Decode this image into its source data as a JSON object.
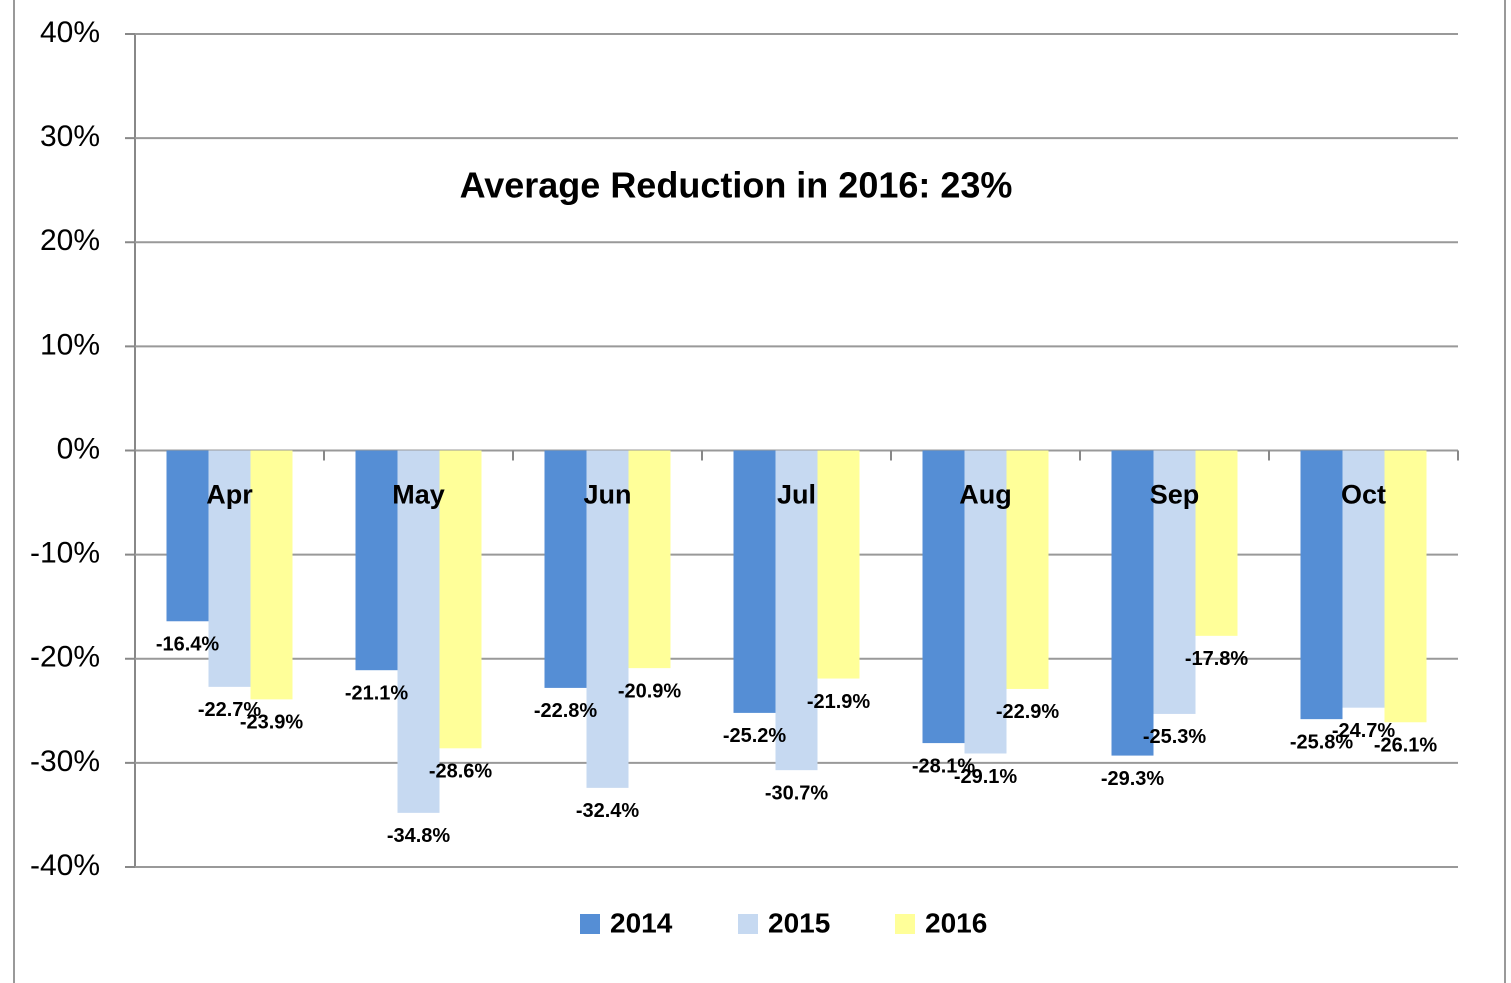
{
  "chart_data": {
    "type": "bar",
    "annotation": "Average Reduction in 2016: 23%",
    "categories": [
      "Apr",
      "May",
      "Jun",
      "Jul",
      "Aug",
      "Sep",
      "Oct"
    ],
    "series": [
      {
        "name": "2014",
        "color": "#558ed5",
        "values": [
          -16.4,
          -21.1,
          -22.8,
          -25.2,
          -28.1,
          -29.3,
          -25.8
        ],
        "value_labels": [
          "-16.4%",
          "-21.1%",
          "-22.8%",
          "-25.2%",
          "-28.1%",
          "-29.3%",
          "-25.8%"
        ]
      },
      {
        "name": "2015",
        "color": "#c6d9f1",
        "values": [
          -22.7,
          -34.8,
          -32.4,
          -30.7,
          -29.1,
          -25.3,
          -24.7
        ],
        "value_labels": [
          "-22.7%",
          "-34.8%",
          "-32.4%",
          "-30.7%",
          "-29.1%",
          "-25.3%",
          "-24.7%"
        ]
      },
      {
        "name": "2016",
        "color": "#ffff99",
        "values": [
          -23.9,
          -28.6,
          -20.9,
          -21.9,
          -22.9,
          -17.8,
          -26.1
        ],
        "value_labels": [
          "-23.9%",
          "-28.6%",
          "-20.9%",
          "-21.9%",
          "-22.9%",
          "-17.8%",
          "-26.1%"
        ]
      }
    ],
    "ylim": [
      -40,
      40
    ],
    "yticks": [
      {
        "value": -40,
        "label": "-40%"
      },
      {
        "value": -30,
        "label": "-30%"
      },
      {
        "value": -20,
        "label": "-20%"
      },
      {
        "value": -10,
        "label": "-10%"
      },
      {
        "value": 0,
        "label": "0%"
      },
      {
        "value": 10,
        "label": "10%"
      },
      {
        "value": 20,
        "label": "20%"
      },
      {
        "value": 30,
        "label": "30%"
      },
      {
        "value": 40,
        "label": "40%"
      }
    ],
    "grid": true,
    "legend": "bottom"
  }
}
